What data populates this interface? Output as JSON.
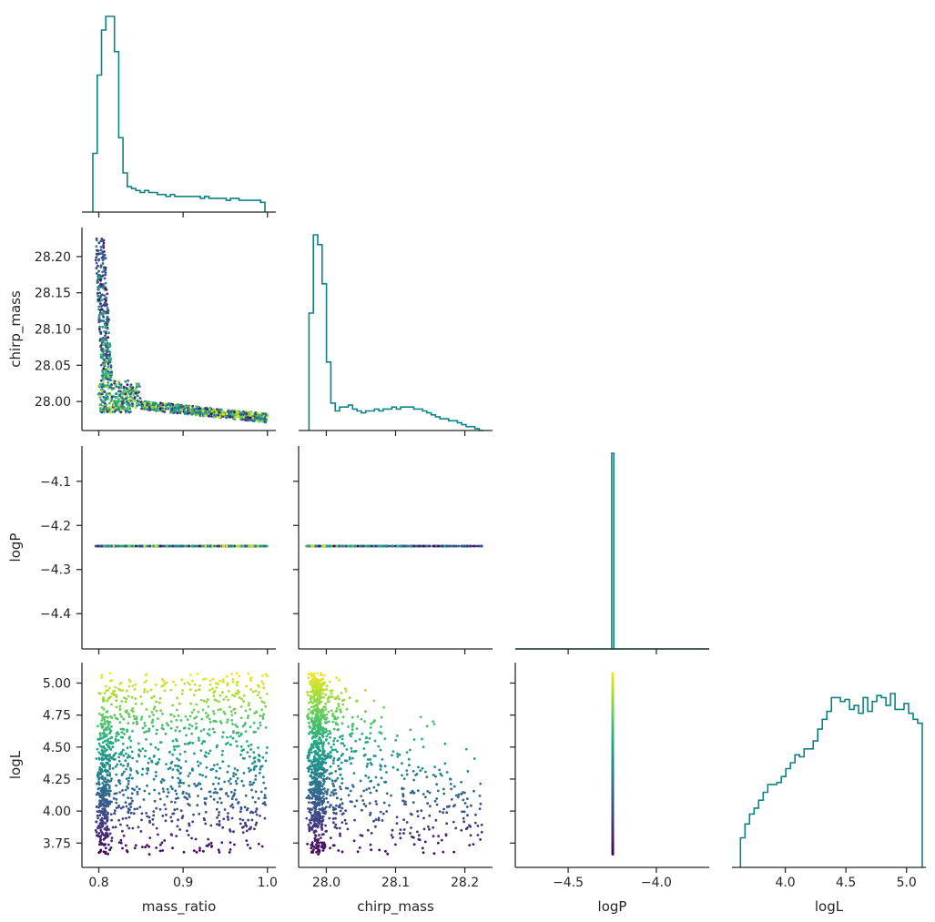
{
  "chart_data": {
    "type": "scatter",
    "variables": [
      "mass_ratio",
      "chirp_mass",
      "logP",
      "logL"
    ],
    "ranges": {
      "mass_ratio": [
        0.78,
        1.01
      ],
      "chirp_mass": [
        27.96,
        28.24
      ],
      "logP": [
        -4.48,
        -4.02
      ],
      "logL": [
        3.56,
        5.16
      ]
    },
    "logP_hist_range": [
      -4.8,
      -3.7
    ],
    "ticks": {
      "mass_ratio": [
        0.8,
        0.9,
        1.0
      ],
      "chirp_mass": [
        28.0,
        28.1,
        28.2
      ],
      "logP": [
        -4.5,
        -4.0
      ],
      "logL": [
        4.0,
        4.5,
        5.0
      ]
    },
    "tick_labels": {
      "mass_ratio": [
        "0.8",
        "0.9",
        "1.0"
      ],
      "chirp_mass": [
        "28.0",
        "28.1",
        "28.2"
      ],
      "logP": [
        "−4.5",
        "−4.0"
      ],
      "logL": [
        "4.0",
        "4.5",
        "5.0"
      ],
      "chirp_mass_y": [
        "28.00",
        "28.05",
        "28.10",
        "28.15",
        "28.20"
      ],
      "logP_y": [
        "−4.4",
        "−4.3",
        "−4.2",
        "−4.1"
      ],
      "logL_y": [
        "3.75",
        "4.00",
        "4.25",
        "4.50",
        "4.75",
        "5.00"
      ]
    },
    "ytick_values": {
      "chirp_mass": [
        28.0,
        28.05,
        28.1,
        28.15,
        28.2
      ],
      "logP": [
        -4.4,
        -4.3,
        -4.2,
        -4.1
      ],
      "logL": [
        3.75,
        4.0,
        4.25,
        4.5,
        4.75,
        5.0
      ]
    },
    "logP_constant": -4.247,
    "histograms": {
      "mass_ratio": {
        "bin_edges_start": 0.793,
        "bin_width": 0.0051,
        "counts": [
          0.3,
          0.7,
          0.93,
          1.0,
          1.0,
          0.82,
          0.38,
          0.2,
          0.13,
          0.12,
          0.11,
          0.1,
          0.11,
          0.1,
          0.1,
          0.09,
          0.09,
          0.08,
          0.09,
          0.08,
          0.08,
          0.08,
          0.08,
          0.08,
          0.08,
          0.07,
          0.08,
          0.07,
          0.07,
          0.07,
          0.07,
          0.06,
          0.07,
          0.07,
          0.06,
          0.06,
          0.06,
          0.06,
          0.06,
          0.05
        ]
      },
      "chirp_mass": {
        "bin_edges_start": 27.975,
        "bin_width": 0.0063,
        "counts": [
          0.6,
          1.0,
          0.95,
          0.75,
          0.35,
          0.14,
          0.1,
          0.12,
          0.12,
          0.13,
          0.11,
          0.1,
          0.09,
          0.1,
          0.1,
          0.11,
          0.1,
          0.11,
          0.11,
          0.12,
          0.11,
          0.12,
          0.12,
          0.12,
          0.11,
          0.11,
          0.1,
          0.09,
          0.08,
          0.07,
          0.06,
          0.06,
          0.05,
          0.05,
          0.04,
          0.03,
          0.02,
          0.02,
          0.01,
          0.0
        ]
      },
      "logP": {
        "bin_edges_start": -4.253,
        "bin_width": 0.012,
        "counts": [
          1.0
        ]
      },
      "logL": {
        "bin_edges_start": 3.63,
        "bin_width": 0.0375,
        "counts": [
          0.15,
          0.22,
          0.27,
          0.3,
          0.34,
          0.38,
          0.42,
          0.42,
          0.43,
          0.46,
          0.5,
          0.53,
          0.57,
          0.56,
          0.6,
          0.6,
          0.64,
          0.7,
          0.75,
          0.79,
          0.86,
          0.86,
          0.84,
          0.85,
          0.8,
          0.82,
          0.78,
          0.86,
          0.79,
          0.84,
          0.87,
          0.86,
          0.82,
          0.88,
          0.8,
          0.8,
          0.83,
          0.78,
          0.75,
          0.73
        ]
      }
    }
  }
}
